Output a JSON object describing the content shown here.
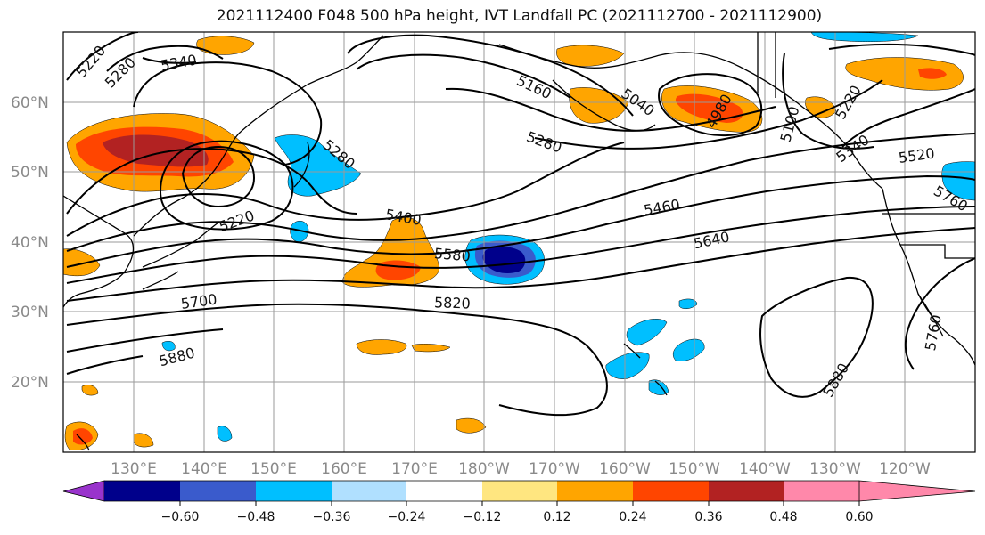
{
  "title": "2021112400 F048 500 hPa height, IVT Landfall PC (2021112700 - 2021112900)",
  "lat_labels": [
    "60°N",
    "50°N",
    "40°N",
    "30°N",
    "20°N"
  ],
  "lon_labels": [
    "130°E",
    "140°E",
    "150°E",
    "160°E",
    "170°E",
    "180°W",
    "170°W",
    "160°W",
    "150°W",
    "140°W",
    "130°W",
    "120°W"
  ],
  "contour_labels": [
    "5220",
    "5280",
    "5340",
    "5160",
    "5040",
    "4980",
    "5100",
    "5220",
    "5340",
    "5280",
    "5280",
    "5220",
    "5400",
    "5460",
    "5520",
    "5580",
    "5640",
    "5700",
    "5760",
    "5820",
    "5880",
    "5880",
    "5760"
  ],
  "colorbar": {
    "ticks": [
      "−0.60",
      "−0.48",
      "−0.36",
      "−0.24",
      "−0.12",
      "0.12",
      "0.24",
      "0.36",
      "0.48",
      "0.60"
    ],
    "colors": [
      "#9933cc",
      "#00008b",
      "#3a5bcc",
      "#00bfff",
      "#b0e0ff",
      "#ffffff",
      "#ffe680",
      "#ffa500",
      "#ff4500",
      "#b22222",
      "#ff88aa"
    ]
  }
}
